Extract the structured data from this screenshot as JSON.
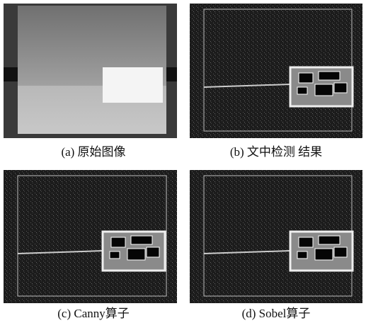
{
  "panels": [
    {
      "caption": "(a) 原始图像"
    },
    {
      "caption": "(b) 文中检测 结果"
    },
    {
      "caption": "(c) Canny算子"
    },
    {
      "caption": "(d) Sobel算子"
    }
  ]
}
